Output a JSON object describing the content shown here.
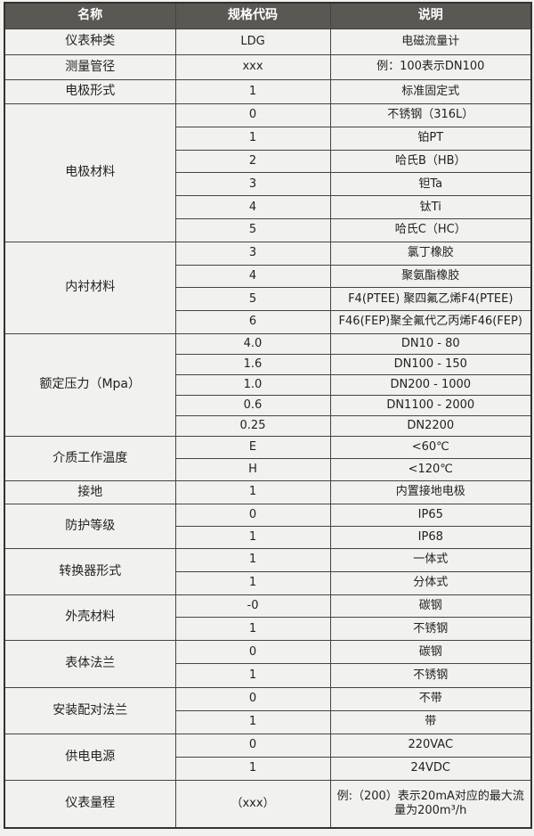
{
  "header": {
    "name": "名称",
    "code": "规格代码",
    "desc": "说明"
  },
  "groups": [
    {
      "name": "仪表种类",
      "items": [
        {
          "code": "LDG",
          "desc": "电磁流量计"
        }
      ]
    },
    {
      "name": "测量管径",
      "items": [
        {
          "code": "xxx",
          "desc": "例：100表示DN100"
        }
      ]
    },
    {
      "name": "电极形式",
      "items": [
        {
          "code": "1",
          "desc": "标准固定式"
        }
      ]
    },
    {
      "name": "电极材料",
      "items": [
        {
          "code": "0",
          "desc": "不锈钢（316L）"
        },
        {
          "code": "1",
          "desc": "铂PT"
        },
        {
          "code": "2",
          "desc": "哈氏B（HB）"
        },
        {
          "code": "3",
          "desc": "钽Ta"
        },
        {
          "code": "4",
          "desc": "钛Ti"
        },
        {
          "code": "5",
          "desc": "哈氏C（HC）"
        }
      ]
    },
    {
      "name": "内衬材料",
      "items": [
        {
          "code": "3",
          "desc": "氯丁橡胶"
        },
        {
          "code": "4",
          "desc": "聚氨酯橡胶"
        },
        {
          "code": "5",
          "desc": "F4(PTEE) 聚四氟乙烯F4(PTEE)"
        },
        {
          "code": "6",
          "desc": "F46(FEP)聚全氟代乙丙烯F46(FEP)"
        }
      ]
    },
    {
      "name": "额定压力（Mpa）",
      "items": [
        {
          "code": "4.0",
          "desc": "DN10 - 80"
        },
        {
          "code": "1.6",
          "desc": "DN100 - 150"
        },
        {
          "code": "1.0",
          "desc": "DN200 - 1000"
        },
        {
          "code": "0.6",
          "desc": "DN1100 - 2000"
        },
        {
          "code": "0.25",
          "desc": "DN2200"
        }
      ]
    },
    {
      "name": "介质工作温度",
      "items": [
        {
          "code": "E",
          "desc": "<60℃"
        },
        {
          "code": "H",
          "desc": "<120℃"
        }
      ]
    },
    {
      "name": "接地",
      "items": [
        {
          "code": "1",
          "desc": "内置接地电极"
        }
      ]
    },
    {
      "name": "防护等级",
      "items": [
        {
          "code": "0",
          "desc": "IP65"
        },
        {
          "code": "1",
          "desc": "IP68"
        }
      ]
    },
    {
      "name": "转换器形式",
      "items": [
        {
          "code": "1",
          "desc": "一体式"
        },
        {
          "code": "1",
          "desc": "分体式"
        }
      ]
    },
    {
      "name": "外壳材料",
      "items": [
        {
          "code": "-0",
          "desc": "碳钢"
        },
        {
          "code": "1",
          "desc": "不锈钢"
        }
      ]
    },
    {
      "name": "表体法兰",
      "items": [
        {
          "code": "0",
          "desc": "碳钢"
        },
        {
          "code": "1",
          "desc": "不锈钢"
        }
      ]
    },
    {
      "name": "安装配对法兰",
      "items": [
        {
          "code": "0",
          "desc": "不带"
        },
        {
          "code": "1",
          "desc": "带"
        }
      ]
    },
    {
      "name": "供电电源",
      "items": [
        {
          "code": "0",
          "desc": "220VAC"
        },
        {
          "code": "1",
          "desc": "24VDC"
        }
      ]
    },
    {
      "name": "仪表量程",
      "items": [
        {
          "code": "（xxx）",
          "desc": "例:（200）表示20mA对应的最大流量为200m³/h"
        }
      ]
    }
  ]
}
